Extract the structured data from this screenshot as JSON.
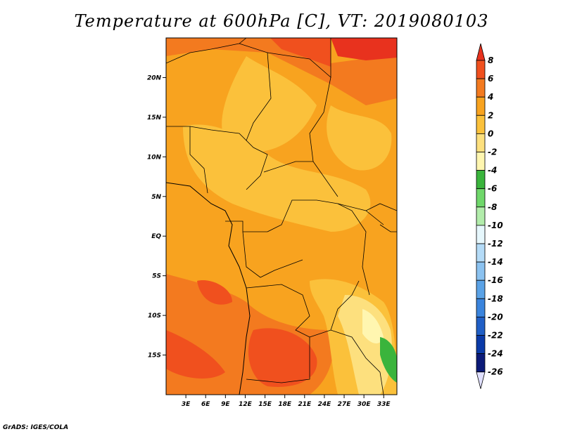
{
  "title": "Temperature at 600hPa [C], VT: 2019080103",
  "credit": "GrADS: IGES/COLA",
  "chart_data": {
    "type": "heatmap",
    "title": "Temperature at 600hPa [C], VT: 2019080103",
    "variable": "Temperature",
    "level": "600hPa",
    "units": "C",
    "valid_time": "2019080103",
    "x_ticks": [
      "3E",
      "6E",
      "9E",
      "12E",
      "15E",
      "18E",
      "21E",
      "24E",
      "27E",
      "30E",
      "33E"
    ],
    "x_tick_values": [
      3,
      6,
      9,
      12,
      15,
      18,
      21,
      24,
      27,
      30,
      33
    ],
    "y_ticks": [
      "20N",
      "15N",
      "10N",
      "5N",
      "EQ",
      "5S",
      "10S",
      "15S"
    ],
    "y_tick_values": [
      20,
      15,
      10,
      5,
      0,
      -5,
      -10,
      -15
    ],
    "lon_range": [
      0,
      35
    ],
    "lat_range": [
      -20,
      25
    ],
    "colorbar": {
      "labels": [
        "8",
        "6",
        "4",
        "2",
        "0",
        "-2",
        "-4",
        "-6",
        "-8",
        "-10",
        "-12",
        "-14",
        "-16",
        "-18",
        "-20",
        "-22",
        "-24",
        "-26"
      ],
      "colors": [
        "#e8321e",
        "#f0501e",
        "#f37a1f",
        "#f8a31f",
        "#fbc13b",
        "#fde07e",
        "#fff6b0",
        "#3ab43c",
        "#6fd76a",
        "#b2ecab",
        "#e6f7fc",
        "#b4dbf7",
        "#8bc2f0",
        "#5aa2e6",
        "#3a84dd",
        "#205fc6",
        "#0a3aa8",
        "#0b1a78",
        "#e0e0ff"
      ]
    }
  }
}
